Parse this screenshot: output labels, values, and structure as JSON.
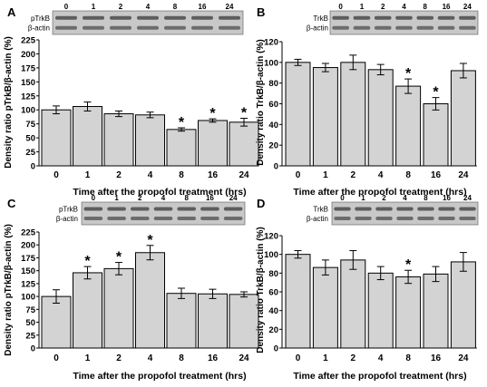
{
  "chart_data": [
    {
      "type": "bar",
      "panel_label": "A",
      "categories": [
        "0",
        "1",
        "2",
        "4",
        "8",
        "16",
        "24"
      ],
      "values": [
        100,
        106,
        93,
        91,
        65,
        81,
        78
      ],
      "errors": [
        7,
        8,
        5,
        5,
        3,
        3,
        7
      ],
      "significant": [
        false,
        false,
        false,
        false,
        true,
        true,
        true
      ],
      "ylabel": "Density ratio pTrkB/β-actin (%)",
      "xlabel": "Time after the propofol treatment (hrs)",
      "ylim": [
        0,
        225
      ],
      "yticks": [
        0,
        25,
        50,
        75,
        100,
        125,
        150,
        175,
        200,
        225
      ],
      "blot_labels": [
        "pTrkB",
        "β-actin"
      ],
      "blot_lanes": [
        "0",
        "1",
        "2",
        "4",
        "8",
        "16",
        "24"
      ]
    },
    {
      "type": "bar",
      "panel_label": "B",
      "categories": [
        "0",
        "1",
        "2",
        "4",
        "8",
        "16",
        "24"
      ],
      "values": [
        100,
        95,
        100,
        93,
        77,
        60,
        92
      ],
      "errors": [
        3,
        4,
        7,
        5,
        7,
        6,
        7
      ],
      "significant": [
        false,
        false,
        false,
        false,
        true,
        true,
        false
      ],
      "ylabel": "Density ratio TrkB/β-actin (%)",
      "xlabel": "Time after the propofol treatment (hrs)",
      "ylim": [
        0,
        120
      ],
      "yticks": [
        0,
        20,
        40,
        60,
        80,
        100,
        120
      ],
      "blot_labels": [
        "TrkB",
        "β-actin"
      ],
      "blot_lanes": [
        "0",
        "1",
        "2",
        "4",
        "8",
        "16",
        "24"
      ]
    },
    {
      "type": "bar",
      "panel_label": "C",
      "categories": [
        "0",
        "1",
        "2",
        "4",
        "8",
        "16",
        "24"
      ],
      "values": [
        100,
        146,
        154,
        185,
        106,
        105,
        104
      ],
      "errors": [
        13,
        12,
        12,
        14,
        10,
        9,
        5
      ],
      "significant": [
        false,
        true,
        true,
        true,
        false,
        false,
        false
      ],
      "ylabel": "Density ratio pTrkB/β-actin (%)",
      "xlabel": "Time after the propofol treatment (hrs)",
      "ylim": [
        0,
        225
      ],
      "yticks": [
        0,
        25,
        50,
        75,
        100,
        125,
        150,
        175,
        200,
        225
      ],
      "blot_labels": [
        "pTrkB",
        "β-actin"
      ],
      "blot_lanes": [
        "0",
        "1",
        "2",
        "4",
        "8",
        "16",
        "24"
      ]
    },
    {
      "type": "bar",
      "panel_label": "D",
      "categories": [
        "0",
        "1",
        "2",
        "4",
        "8",
        "16",
        "24"
      ],
      "values": [
        100,
        86,
        94,
        80,
        76,
        79,
        92
      ],
      "errors": [
        4,
        8,
        10,
        7,
        7,
        8,
        10
      ],
      "significant": [
        false,
        false,
        false,
        false,
        true,
        false,
        false
      ],
      "ylabel": "Density ratio TrkB/β-actin (%)",
      "xlabel": "Time after the propofol treatment (hrs)",
      "ylim": [
        0,
        120
      ],
      "yticks": [
        0,
        20,
        40,
        60,
        80,
        100,
        120
      ],
      "blot_labels": [
        "TrkB",
        "β-actin"
      ],
      "blot_lanes": [
        "0",
        "1",
        "2",
        "4",
        "8",
        "16",
        "24"
      ]
    }
  ],
  "significance_marker": "*",
  "colors": {
    "bar_fill": "#d3d3d3",
    "bar_stroke": "#000000",
    "blot_bg": "#c8c8c8",
    "blot_band": "#3a3a3a"
  }
}
